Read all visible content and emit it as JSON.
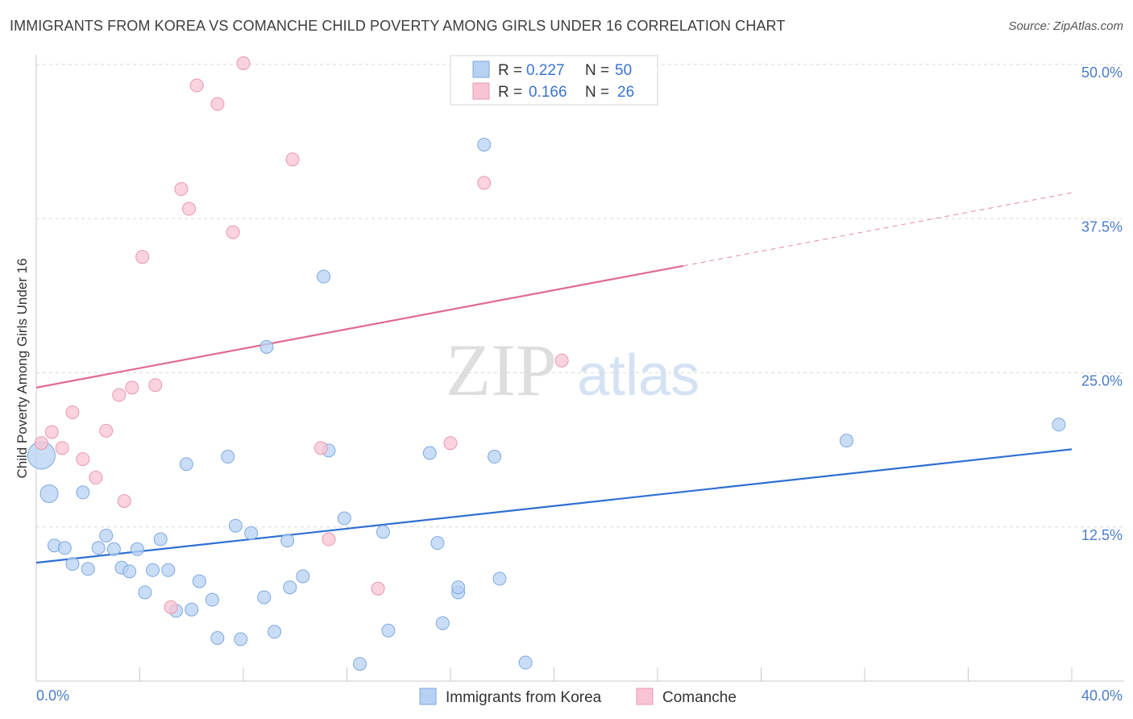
{
  "title": "IMMIGRANTS FROM KOREA VS COMANCHE CHILD POVERTY AMONG GIRLS UNDER 16 CORRELATION CHART",
  "source": "Source: ZipAtlas.com",
  "watermark": {
    "zip": "ZIP",
    "atlas": "atlas"
  },
  "colors": {
    "blue_fill": "#b7d1f3",
    "blue_stroke": "#7ea8e0",
    "blue_line": "#2f6fd1",
    "pink_fill": "#f8c4d3",
    "pink_stroke": "#e897b0",
    "pink_line": "#e06a90",
    "grid": "#d9d9d9",
    "tick_text": "#4a7cc9"
  },
  "chart_data": {
    "type": "scatter",
    "title": "IMMIGRANTS FROM KOREA VS COMANCHE CHILD POVERTY AMONG GIRLS UNDER 16 CORRELATION CHART",
    "xlabel": "",
    "ylabel": "Child Poverty Among Girls Under 16",
    "xlim": [
      0,
      40
    ],
    "ylim": [
      0,
      50
    ],
    "x_tick_labels": [
      "0.0%",
      "40.0%"
    ],
    "y_ticks": [
      12.5,
      25.0,
      37.5,
      50.0
    ],
    "y_tick_labels": [
      "12.5%",
      "25.0%",
      "37.5%",
      "50.0%"
    ],
    "grid": true,
    "legend_position": "top-center",
    "legend": [
      {
        "r_label": "R =",
        "r_value": "0.227",
        "n_label": "N =",
        "n_value": "50"
      },
      {
        "r_label": "R =",
        "r_value": "0.166",
        "n_label": "N =",
        "n_value": "26"
      }
    ],
    "series": [
      {
        "name": "Immigrants from Korea",
        "color": "blue",
        "trend": {
          "x0": 0,
          "y0": 9.6,
          "x1": 40,
          "y1": 18.8,
          "solid_until": 40
        },
        "points": [
          [
            0.2,
            18.3,
            "big"
          ],
          [
            0.5,
            15.2,
            "mid"
          ],
          [
            0.7,
            11.0
          ],
          [
            1.1,
            10.8
          ],
          [
            1.4,
            9.5
          ],
          [
            1.8,
            15.3
          ],
          [
            2.0,
            9.1
          ],
          [
            2.4,
            10.8
          ],
          [
            2.7,
            11.8
          ],
          [
            3.0,
            10.7
          ],
          [
            3.3,
            9.2
          ],
          [
            3.6,
            8.9
          ],
          [
            3.9,
            10.7
          ],
          [
            4.2,
            7.2
          ],
          [
            4.5,
            9.0
          ],
          [
            4.8,
            11.5
          ],
          [
            5.1,
            9.0
          ],
          [
            5.4,
            5.7
          ],
          [
            5.8,
            17.6
          ],
          [
            6.0,
            5.8
          ],
          [
            6.3,
            8.1
          ],
          [
            6.8,
            6.6
          ],
          [
            7.0,
            3.5
          ],
          [
            7.4,
            18.2
          ],
          [
            7.7,
            12.6
          ],
          [
            7.9,
            3.4
          ],
          [
            8.3,
            12.0
          ],
          [
            8.8,
            6.8
          ],
          [
            8.9,
            27.1
          ],
          [
            9.2,
            4.0
          ],
          [
            9.7,
            11.4
          ],
          [
            9.8,
            7.6
          ],
          [
            10.3,
            8.5
          ],
          [
            11.1,
            32.8
          ],
          [
            11.3,
            18.7
          ],
          [
            11.9,
            13.2
          ],
          [
            12.5,
            1.4
          ],
          [
            13.4,
            12.1
          ],
          [
            13.6,
            4.1
          ],
          [
            15.2,
            18.5
          ],
          [
            15.5,
            11.2
          ],
          [
            15.7,
            4.7
          ],
          [
            16.3,
            7.2
          ],
          [
            16.3,
            7.6
          ],
          [
            17.3,
            43.5
          ],
          [
            17.7,
            18.2
          ],
          [
            17.9,
            8.3
          ],
          [
            18.9,
            1.5
          ],
          [
            31.3,
            19.5
          ],
          [
            39.5,
            20.8
          ]
        ]
      },
      {
        "name": "Comanche",
        "color": "pink",
        "trend": {
          "x0": 0,
          "y0": 23.8,
          "x1": 40,
          "y1": 39.6,
          "solid_until": 25
        },
        "points": [
          [
            0.2,
            19.3
          ],
          [
            0.6,
            20.2
          ],
          [
            1.0,
            18.9
          ],
          [
            1.4,
            21.8
          ],
          [
            1.8,
            18.0
          ],
          [
            2.3,
            16.5
          ],
          [
            2.7,
            20.3
          ],
          [
            3.2,
            23.2
          ],
          [
            3.4,
            14.6
          ],
          [
            3.7,
            23.8
          ],
          [
            4.1,
            34.4
          ],
          [
            4.6,
            24.0
          ],
          [
            5.2,
            6.0
          ],
          [
            5.6,
            39.9
          ],
          [
            5.9,
            38.3
          ],
          [
            6.2,
            48.3
          ],
          [
            7.0,
            46.8
          ],
          [
            7.6,
            36.4
          ],
          [
            8.0,
            50.1
          ],
          [
            9.9,
            42.3
          ],
          [
            11.0,
            18.9
          ],
          [
            11.3,
            11.5
          ],
          [
            13.2,
            7.5
          ],
          [
            16.0,
            19.3
          ],
          [
            17.3,
            40.4
          ],
          [
            20.3,
            26.0
          ]
        ]
      }
    ]
  }
}
